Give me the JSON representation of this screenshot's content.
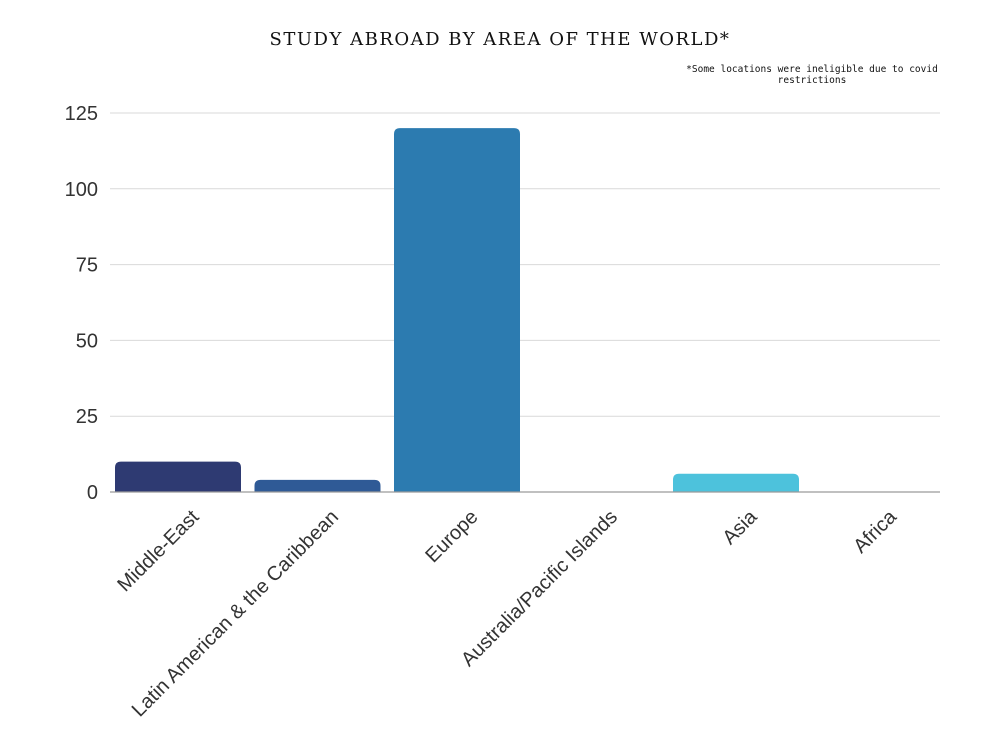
{
  "chart_data": {
    "type": "bar",
    "title": "STUDY ABROAD BY AREA OF THE WORLD*",
    "note_lines": [
      "*Some locations were ineligible due to covid",
      "restrictions"
    ],
    "categories": [
      "Middle-East",
      "Latin American & the Caribbean",
      "Europe",
      "Australia/Pacific Islands",
      "Asia",
      "Africa"
    ],
    "values": [
      10,
      4,
      120,
      0,
      6,
      0
    ],
    "colors": [
      "#2e3a72",
      "#2f5a96",
      "#2c7bb0",
      "#2c8fc4",
      "#4dc2dc",
      "#5fd0e6"
    ],
    "yticks": [
      "0",
      "25",
      "50",
      "75",
      "100",
      "125"
    ],
    "ylim": [
      0,
      125
    ],
    "grid": true,
    "legend": "none",
    "xlabel": "",
    "ylabel": ""
  }
}
